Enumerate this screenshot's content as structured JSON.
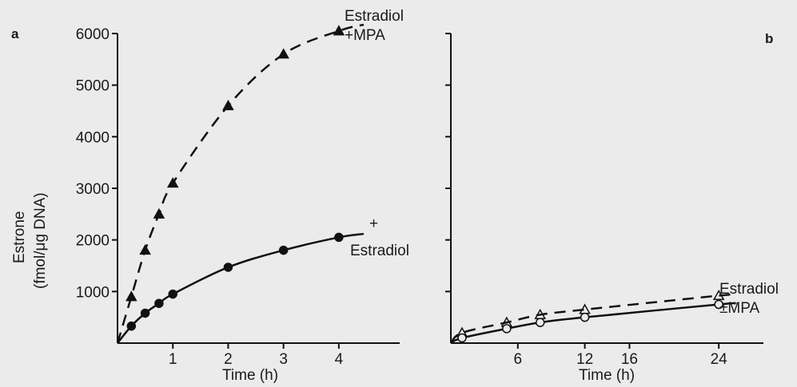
{
  "chart_data": [
    {
      "type": "line",
      "panel_label": "a",
      "xlabel": "Time (h)",
      "ylabel_line1": "Estrone",
      "ylabel_line2": "(fmol/μg DNA)",
      "xlim": [
        0,
        5.1
      ],
      "ylim": [
        0,
        6000
      ],
      "xticks": [
        1,
        2,
        3,
        4
      ],
      "yticks": [
        1000,
        2000,
        3000,
        4000,
        5000,
        6000
      ],
      "grid": false,
      "series": [
        {
          "label_lines": [
            "Estradiol",
            "+MPA"
          ],
          "marker": "filled-triangle",
          "linestyle": "dashed",
          "x": [
            0.25,
            0.5,
            0.75,
            1,
            2,
            3,
            4
          ],
          "y": [
            900,
            1800,
            2500,
            3100,
            4600,
            5600,
            6050
          ]
        },
        {
          "label_lines": [
            "+",
            "Estradiol"
          ],
          "marker": "filled-circle",
          "linestyle": "solid",
          "x": [
            0.25,
            0.5,
            0.75,
            1,
            2,
            3,
            4
          ],
          "y": [
            330,
            580,
            770,
            950,
            1470,
            1800,
            2050
          ]
        }
      ]
    },
    {
      "type": "line",
      "panel_label": "b",
      "xlabel": "Time (h)",
      "xlim": [
        0,
        28
      ],
      "ylim": [
        0,
        6000
      ],
      "xticks": [
        6,
        12,
        16,
        24
      ],
      "yticks": [
        1000,
        2000,
        3000,
        4000,
        5000,
        6000
      ],
      "grid": false,
      "series": [
        {
          "marker": "open-triangle",
          "linestyle": "dashed",
          "x": [
            1,
            5,
            8,
            12,
            24
          ],
          "y": [
            200,
            400,
            550,
            650,
            920
          ]
        },
        {
          "marker": "open-circle",
          "linestyle": "solid",
          "x": [
            1,
            5,
            8,
            12,
            24
          ],
          "y": [
            100,
            280,
            400,
            500,
            750
          ]
        }
      ],
      "series_label_lines": [
        "Estradiol",
        "±MPA"
      ]
    }
  ]
}
